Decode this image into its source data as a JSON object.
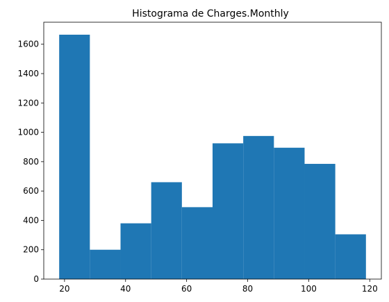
{
  "chart_data": {
    "type": "bar",
    "title": "Histograma de Charges.Monthly",
    "xlabel": "",
    "ylabel": "",
    "bins": [
      {
        "start": 18.25,
        "end": 28.3,
        "count": 1665
      },
      {
        "start": 28.3,
        "end": 38.35,
        "count": 200
      },
      {
        "start": 38.35,
        "end": 48.4,
        "count": 380
      },
      {
        "start": 48.4,
        "end": 58.45,
        "count": 660
      },
      {
        "start": 58.45,
        "end": 68.5,
        "count": 490
      },
      {
        "start": 68.5,
        "end": 78.55,
        "count": 925
      },
      {
        "start": 78.55,
        "end": 88.6,
        "count": 975
      },
      {
        "start": 88.6,
        "end": 98.65,
        "count": 895
      },
      {
        "start": 98.65,
        "end": 108.7,
        "count": 785
      },
      {
        "start": 108.7,
        "end": 118.75,
        "count": 305
      }
    ],
    "xlim": [
      13.2,
      123.8
    ],
    "ylim": [
      0,
      1750
    ],
    "xticks": [
      20,
      40,
      60,
      80,
      100,
      120
    ],
    "yticks": [
      0,
      200,
      400,
      600,
      800,
      1000,
      1200,
      1400,
      1600
    ],
    "grid": false,
    "bar_color": "#1f77b4"
  }
}
